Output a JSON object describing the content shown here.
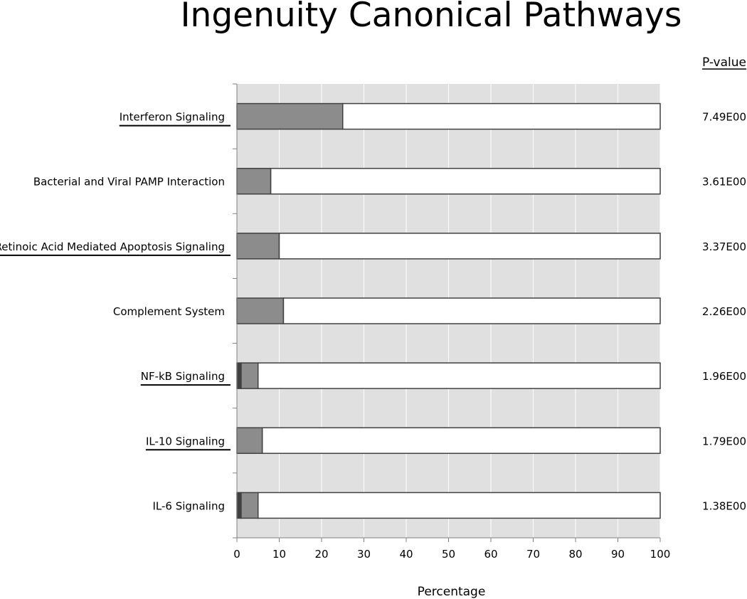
{
  "chart_data": {
    "type": "bar",
    "title": "Ingenuity Canonical Pathways",
    "xlabel": "Percentage",
    "ylabel": "",
    "xlim": [
      0,
      100
    ],
    "x_ticks": [
      "0",
      "10",
      "20",
      "30",
      "40",
      "50",
      "60",
      "70",
      "80",
      "90",
      "100"
    ],
    "pvalue_header": "P-value",
    "grid": true,
    "stacked": true,
    "orientation": "horizontal",
    "categories": [
      "Interferon Signaling",
      "Bacterial and Viral PAMP Interaction",
      "Retinoic Acid Mediated Apoptosis Signaling",
      "Complement System",
      "NF-kB Signaling",
      "IL-10 Signaling",
      "IL-6 Signaling"
    ],
    "underlined": [
      true,
      false,
      true,
      false,
      true,
      true,
      false
    ],
    "p_values": [
      "7.49E00",
      "3.61E00",
      "3.37E00",
      "2.26E00",
      "1.96E00",
      "1.79E00",
      "1.38E00"
    ],
    "series": [
      {
        "values": [
          0,
          0,
          0,
          0,
          1,
          0,
          1
        ],
        "color": "#404040"
      },
      {
        "values": [
          25,
          8,
          10,
          11,
          4,
          6,
          4
        ],
        "color": "#8c8c8c"
      },
      {
        "values": [
          75,
          92,
          90,
          89,
          95,
          94,
          95
        ],
        "color": "#ffffff"
      }
    ],
    "colors": {
      "plot_bg": "#e0e0e0",
      "grid": "#ffffff",
      "bar_outline": "#404040"
    }
  }
}
